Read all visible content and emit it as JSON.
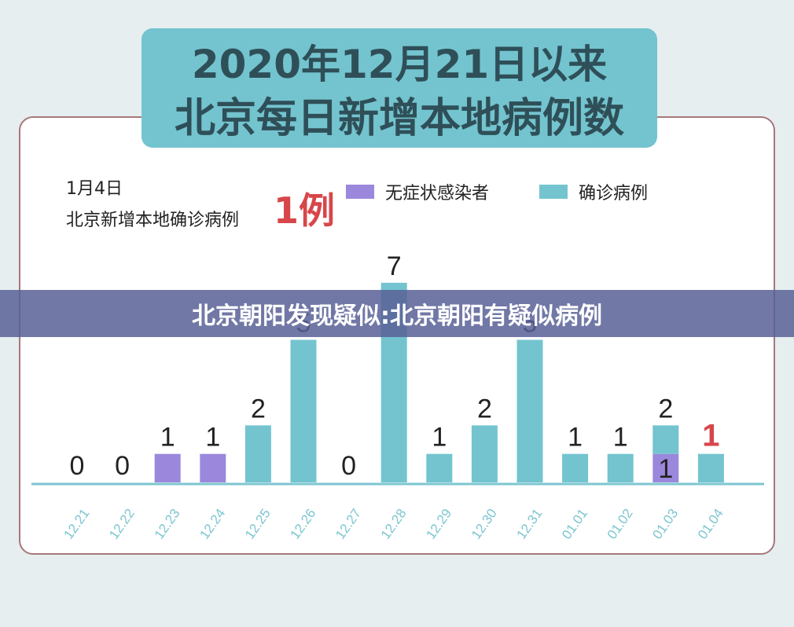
{
  "title": {
    "line1": "2020年12月21日以来",
    "line2": "北京每日新增本地病例数"
  },
  "info": {
    "date": "1月4日",
    "text": "北京新增本地确诊病例",
    "count": "1例"
  },
  "legend": [
    {
      "label": "无症状感染者",
      "color": "#9b88dc"
    },
    {
      "label": "确诊病例",
      "color": "#73c4cf"
    }
  ],
  "banner": "北京朝阳发现疑似:北京朝阳有疑似病例",
  "colors": {
    "asymptomatic": "#9b88dc",
    "confirmed": "#73c4cf",
    "highlight": "#d7464a",
    "axis": "#7cc6d0"
  },
  "chart_data": {
    "type": "bar",
    "categories": [
      "12.21",
      "12.22",
      "12.23",
      "12.24",
      "12.25",
      "12.26",
      "12.27",
      "12.28",
      "12.29",
      "12.30",
      "12.31",
      "01.01",
      "01.02",
      "01.03",
      "01.04"
    ],
    "series": [
      {
        "name": "无症状感染者",
        "values": [
          0,
          0,
          1,
          1,
          0,
          0,
          0,
          0,
          0,
          0,
          0,
          0,
          0,
          1,
          0
        ]
      },
      {
        "name": "确诊病例",
        "values": [
          0,
          0,
          0,
          0,
          2,
          5,
          0,
          7,
          1,
          2,
          5,
          1,
          1,
          1,
          1
        ]
      }
    ],
    "labels": [
      "0",
      "0",
      "1",
      "1",
      "2",
      "5",
      "0",
      "7",
      "1",
      "2",
      "5",
      "1",
      "1",
      "1",
      "1"
    ],
    "stack_labels": {
      "13": "2"
    },
    "highlight_index": 14,
    "ylim": [
      0,
      7
    ]
  }
}
